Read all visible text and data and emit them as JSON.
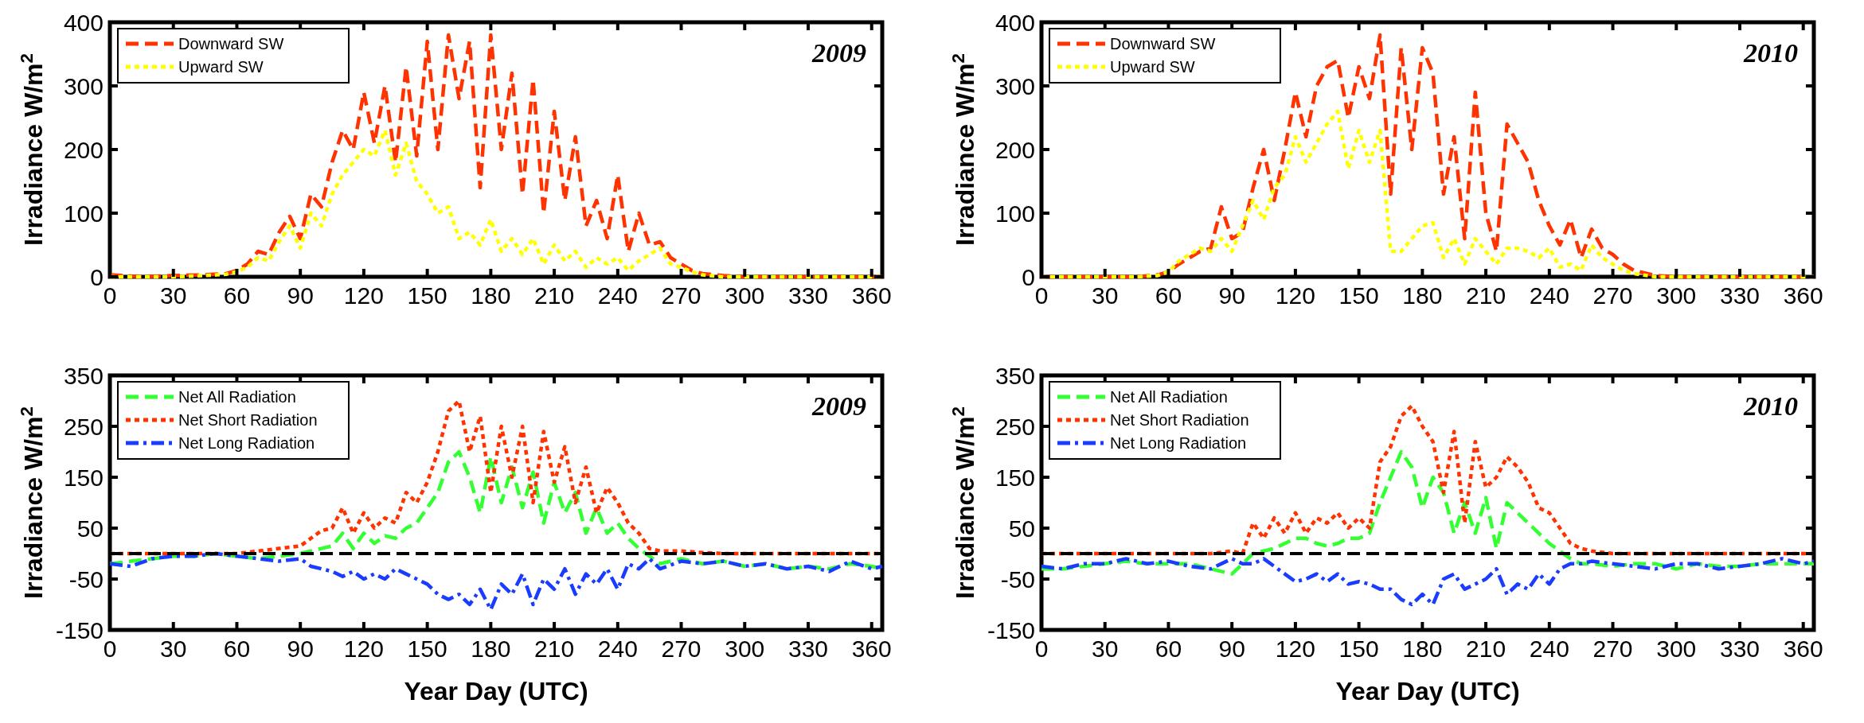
{
  "chart_data": [
    {
      "type": "line",
      "ylabel": "Irradiance W/m$^{2}$",
      "annotations": [
        "2009"
      ],
      "legend": "top left",
      "xlim": [
        0,
        365
      ],
      "xticks": [
        0,
        30,
        60,
        90,
        120,
        150,
        180,
        210,
        240,
        270,
        300,
        330,
        360
      ],
      "ylim": [
        0,
        400
      ],
      "yticks": [
        0,
        100,
        200,
        300,
        400
      ],
      "x": [
        0,
        15,
        30,
        45,
        55,
        60,
        65,
        70,
        75,
        80,
        85,
        90,
        95,
        100,
        105,
        110,
        115,
        120,
        125,
        130,
        135,
        140,
        145,
        150,
        155,
        160,
        165,
        170,
        175,
        180,
        185,
        190,
        195,
        200,
        205,
        210,
        215,
        220,
        225,
        230,
        235,
        240,
        245,
        250,
        255,
        260,
        265,
        270,
        275,
        280,
        290,
        300,
        315,
        330,
        345,
        365
      ],
      "series": [
        {
          "name": "Downward SW",
          "color": "#ff3300",
          "line_style": "dashed",
          "values": [
            3,
            0,
            2,
            3,
            5,
            10,
            20,
            40,
            35,
            70,
            95,
            60,
            130,
            110,
            180,
            230,
            200,
            290,
            210,
            300,
            180,
            330,
            190,
            370,
            200,
            380,
            280,
            370,
            140,
            380,
            200,
            320,
            130,
            310,
            100,
            260,
            120,
            220,
            80,
            120,
            60,
            160,
            40,
            100,
            50,
            55,
            30,
            20,
            10,
            5,
            2,
            0,
            0,
            0,
            0,
            0
          ]
        },
        {
          "name": "Upward SW",
          "color": "#ffff00",
          "line_style": "dotted",
          "values": [
            0,
            0,
            0,
            2,
            4,
            8,
            15,
            30,
            25,
            55,
            80,
            45,
            100,
            80,
            130,
            160,
            180,
            200,
            190,
            230,
            160,
            210,
            150,
            130,
            100,
            110,
            60,
            70,
            50,
            90,
            40,
            60,
            35,
            60,
            20,
            50,
            25,
            40,
            15,
            30,
            20,
            30,
            10,
            25,
            35,
            45,
            20,
            15,
            8,
            3,
            0,
            0,
            0,
            0,
            0,
            0
          ]
        }
      ]
    },
    {
      "type": "line",
      "ylabel": "Irradiance W/m$^{2}$",
      "annotations": [
        "2010"
      ],
      "legend": "top left",
      "xlim": [
        0,
        365
      ],
      "xticks": [
        0,
        30,
        60,
        90,
        120,
        150,
        180,
        210,
        240,
        270,
        300,
        330,
        360
      ],
      "ylim": [
        0,
        400
      ],
      "yticks": [
        0,
        100,
        200,
        300,
        400
      ],
      "x": [
        0,
        15,
        30,
        45,
        55,
        60,
        65,
        70,
        75,
        80,
        85,
        90,
        95,
        100,
        105,
        110,
        115,
        120,
        125,
        130,
        135,
        140,
        145,
        150,
        155,
        160,
        165,
        170,
        175,
        180,
        185,
        190,
        195,
        200,
        205,
        210,
        215,
        220,
        225,
        230,
        235,
        240,
        245,
        250,
        255,
        260,
        265,
        270,
        275,
        280,
        290,
        300,
        315,
        330,
        345,
        365
      ],
      "series": [
        {
          "name": "Downward SW",
          "color": "#ff3300",
          "line_style": "dashed",
          "values": [
            0,
            0,
            0,
            0,
            3,
            8,
            20,
            30,
            40,
            45,
            110,
            60,
            70,
            140,
            200,
            120,
            200,
            290,
            220,
            300,
            330,
            340,
            250,
            330,
            280,
            380,
            130,
            360,
            200,
            360,
            320,
            130,
            220,
            60,
            290,
            100,
            40,
            240,
            210,
            180,
            120,
            80,
            50,
            90,
            30,
            75,
            45,
            35,
            20,
            10,
            2,
            0,
            0,
            0,
            0,
            0
          ]
        },
        {
          "name": "Upward SW",
          "color": "#ffff00",
          "line_style": "dotted",
          "values": [
            0,
            0,
            0,
            0,
            2,
            8,
            25,
            35,
            45,
            40,
            60,
            40,
            80,
            120,
            90,
            140,
            160,
            220,
            180,
            210,
            240,
            260,
            170,
            230,
            180,
            230,
            40,
            40,
            60,
            80,
            85,
            30,
            60,
            20,
            60,
            40,
            20,
            45,
            45,
            40,
            30,
            45,
            15,
            20,
            10,
            50,
            30,
            20,
            10,
            5,
            0,
            0,
            0,
            0,
            0,
            0
          ]
        }
      ]
    },
    {
      "type": "line",
      "ylabel": "Irradiance W/m$^{2}$",
      "xlabel": "Year Day (UTC)",
      "annotations": [
        "2009"
      ],
      "legend": "top left",
      "xlim": [
        0,
        365
      ],
      "xticks": [
        0,
        30,
        60,
        90,
        120,
        150,
        180,
        210,
        240,
        270,
        300,
        330,
        360
      ],
      "ylim": [
        -150,
        350
      ],
      "yticks": [
        -150,
        -50,
        50,
        150,
        250,
        350
      ],
      "ref_lines": [
        {
          "axis": "y",
          "value": 0,
          "color": "#000000",
          "line_style": "dashed"
        }
      ],
      "x": [
        0,
        10,
        20,
        30,
        40,
        50,
        60,
        70,
        80,
        90,
        95,
        100,
        105,
        110,
        115,
        120,
        125,
        130,
        135,
        140,
        145,
        150,
        155,
        160,
        165,
        170,
        175,
        180,
        185,
        190,
        195,
        200,
        205,
        210,
        215,
        220,
        225,
        230,
        235,
        240,
        245,
        250,
        255,
        260,
        270,
        280,
        290,
        300,
        310,
        320,
        330,
        340,
        350,
        360,
        365
      ],
      "series": [
        {
          "name": "Net All Radiation",
          "color": "#33ff33",
          "line_style": "dashed",
          "values": [
            -20,
            -15,
            -10,
            -5,
            -5,
            0,
            -5,
            -10,
            -5,
            0,
            5,
            10,
            15,
            40,
            10,
            40,
            20,
            35,
            30,
            50,
            60,
            90,
            120,
            180,
            200,
            150,
            80,
            190,
            100,
            170,
            90,
            160,
            60,
            140,
            80,
            120,
            40,
            90,
            40,
            60,
            30,
            10,
            -5,
            -20,
            -10,
            -20,
            -15,
            -25,
            -20,
            -30,
            -25,
            -30,
            -20,
            -25,
            -30
          ]
        },
        {
          "name": "Net Short Radiation",
          "color": "#ff3300",
          "line_style": "dotted",
          "values": [
            0,
            0,
            0,
            0,
            0,
            0,
            0,
            5,
            10,
            15,
            30,
            45,
            50,
            90,
            40,
            80,
            50,
            70,
            60,
            120,
            100,
            140,
            200,
            280,
            300,
            200,
            270,
            120,
            250,
            150,
            250,
            100,
            240,
            140,
            210,
            100,
            170,
            80,
            130,
            100,
            60,
            40,
            10,
            5,
            5,
            2,
            0,
            0,
            0,
            0,
            0,
            0,
            0,
            0,
            0
          ]
        },
        {
          "name": "Net Long Radiation",
          "color": "#1a3cff",
          "line_style": "dashdot",
          "values": [
            -20,
            -25,
            -10,
            -5,
            -5,
            0,
            -5,
            -10,
            -15,
            -10,
            -25,
            -30,
            -35,
            -45,
            -35,
            -50,
            -40,
            -50,
            -30,
            -40,
            -50,
            -60,
            -80,
            -90,
            -80,
            -100,
            -70,
            -110,
            -60,
            -80,
            -40,
            -100,
            -50,
            -70,
            -30,
            -80,
            -40,
            -60,
            -30,
            -70,
            -20,
            -30,
            -10,
            -30,
            -15,
            -20,
            -15,
            -25,
            -20,
            -30,
            -25,
            -35,
            -15,
            -30,
            -25
          ]
        }
      ]
    },
    {
      "type": "line",
      "ylabel": "Irradiance W/m$^{2}$",
      "xlabel": "Year Day (UTC)",
      "annotations": [
        "2010"
      ],
      "legend": "top left",
      "xlim": [
        0,
        365
      ],
      "xticks": [
        0,
        30,
        60,
        90,
        120,
        150,
        180,
        210,
        240,
        270,
        300,
        330,
        360
      ],
      "ylim": [
        -150,
        350
      ],
      "yticks": [
        -150,
        -50,
        50,
        150,
        250,
        350
      ],
      "ref_lines": [
        {
          "axis": "y",
          "value": 0,
          "color": "#000000",
          "line_style": "dashed"
        }
      ],
      "x": [
        0,
        10,
        20,
        30,
        40,
        50,
        60,
        70,
        80,
        90,
        95,
        100,
        105,
        110,
        115,
        120,
        125,
        130,
        135,
        140,
        145,
        150,
        155,
        160,
        165,
        170,
        175,
        180,
        185,
        190,
        195,
        200,
        205,
        210,
        215,
        220,
        225,
        230,
        235,
        240,
        245,
        250,
        255,
        260,
        270,
        280,
        290,
        300,
        310,
        320,
        330,
        340,
        350,
        360,
        365
      ],
      "series": [
        {
          "name": "Net All Radiation",
          "color": "#33ff33",
          "line_style": "dashed",
          "values": [
            -30,
            -30,
            -25,
            -20,
            -15,
            -20,
            -20,
            -20,
            -30,
            -40,
            -20,
            0,
            5,
            10,
            20,
            30,
            30,
            20,
            15,
            20,
            30,
            30,
            40,
            100,
            150,
            200,
            170,
            90,
            150,
            120,
            40,
            100,
            40,
            110,
            10,
            100,
            80,
            60,
            40,
            20,
            5,
            -10,
            -20,
            -20,
            -25,
            -20,
            -20,
            -30,
            -20,
            -25,
            -25,
            -20,
            -20,
            -20,
            -20
          ]
        },
        {
          "name": "Net Short Radiation",
          "color": "#ff3300",
          "line_style": "dotted",
          "values": [
            0,
            0,
            0,
            0,
            0,
            0,
            0,
            0,
            0,
            5,
            0,
            60,
            30,
            70,
            40,
            80,
            40,
            70,
            60,
            80,
            50,
            70,
            50,
            180,
            210,
            270,
            290,
            250,
            220,
            120,
            240,
            60,
            220,
            130,
            150,
            190,
            170,
            140,
            90,
            80,
            50,
            20,
            10,
            5,
            0,
            0,
            0,
            0,
            0,
            0,
            0,
            0,
            0,
            0,
            0
          ]
        },
        {
          "name": "Net Long Radiation",
          "color": "#1a3cff",
          "line_style": "dashdot",
          "values": [
            -25,
            -30,
            -20,
            -20,
            -10,
            -20,
            -15,
            -25,
            -30,
            -10,
            -20,
            -20,
            -10,
            -25,
            -40,
            -55,
            -50,
            -40,
            -55,
            -40,
            -60,
            -55,
            -60,
            -70,
            -70,
            -90,
            -100,
            -80,
            -100,
            -50,
            -40,
            -70,
            -60,
            -50,
            -30,
            -80,
            -60,
            -70,
            -40,
            -60,
            -30,
            -20,
            -20,
            -15,
            -20,
            -25,
            -30,
            -20,
            -20,
            -30,
            -25,
            -20,
            -10,
            -20,
            -15
          ]
        }
      ]
    }
  ]
}
